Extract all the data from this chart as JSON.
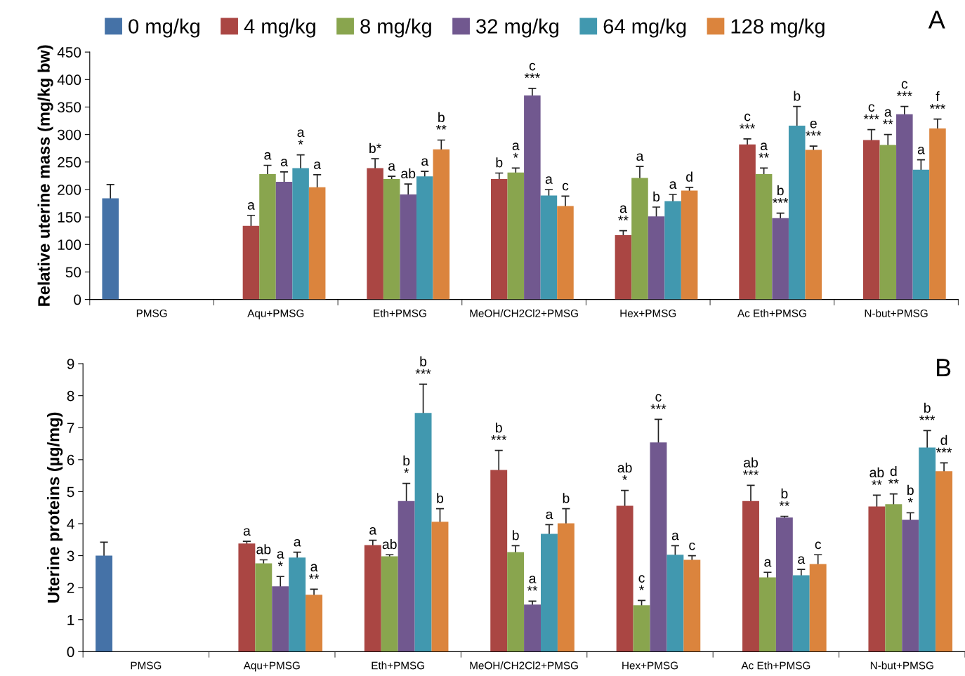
{
  "chart_data": [
    {
      "type": "bar",
      "ylabel": "Relative uterine mass (mg/kg bw)",
      "legend": "top",
      "ylim": [
        0,
        450
      ],
      "yticks": [
        0,
        50,
        100,
        150,
        200,
        250,
        300,
        350,
        400,
        450
      ],
      "grid": false,
      "annotations": [
        "A"
      ],
      "categories": [
        "PMSG",
        "Aqu+PMSG",
        "Eth+PMSG",
        "MeOH/CH2Cl2+PMSG",
        "Hex+PMSG",
        "Ac Eth+PMSG",
        "N-but+PMSG"
      ],
      "series": [
        {
          "name": "0 mg/kg",
          "color": "#4572a7",
          "values": [
            184,
            0,
            0,
            0,
            0,
            0,
            0
          ],
          "errors": [
            25,
            null,
            null,
            null,
            null,
            null,
            null
          ]
        },
        {
          "name": "4 mg/kg",
          "color": "#aa4643",
          "values": [
            0,
            134,
            239,
            219,
            117,
            282,
            290
          ],
          "errors": [
            null,
            19,
            17,
            11,
            8,
            10,
            19
          ],
          "value_labels": [
            null,
            "a",
            "b*",
            "b",
            "a\n**",
            "c\n***",
            "c\n***"
          ]
        },
        {
          "name": "8 mg/kg",
          "color": "#89a54e",
          "values": [
            0,
            228,
            219,
            231,
            221,
            228,
            281
          ],
          "errors": [
            null,
            16,
            5,
            8,
            21,
            11,
            19
          ],
          "value_labels": [
            null,
            "a",
            "a",
            "a\n*",
            "a",
            "a\n**",
            "a\n**"
          ]
        },
        {
          "name": "32 mg/kg",
          "color": "#71588f",
          "values": [
            0,
            214,
            191,
            371,
            151,
            148,
            337
          ],
          "errors": [
            null,
            18,
            19,
            13,
            17,
            9,
            14
          ],
          "value_labels": [
            null,
            "a",
            "ab",
            "c\n***",
            "b",
            "b\n***",
            "c\n***"
          ]
        },
        {
          "name": "64 mg/kg",
          "color": "#4198af",
          "values": [
            0,
            239,
            224,
            189,
            179,
            316,
            236
          ],
          "errors": [
            null,
            24,
            9,
            11,
            12,
            35,
            18
          ],
          "value_labels": [
            null,
            "a\n*",
            "a",
            "a",
            "a",
            "b",
            "a"
          ]
        },
        {
          "name": "128 mg/kg",
          "color": "#db843d",
          "values": [
            0,
            204,
            273,
            170,
            198,
            272,
            311
          ],
          "errors": [
            null,
            23,
            17,
            18,
            6,
            7,
            17
          ],
          "value_labels": [
            null,
            "a",
            "b\n**",
            "c",
            "d",
            "e\n***",
            "f\n***"
          ]
        }
      ]
    },
    {
      "type": "bar",
      "ylabel": "Uterine proteins (µg/mg)",
      "ylim": [
        0,
        9
      ],
      "yticks": [
        0,
        1,
        2,
        3,
        4,
        5,
        6,
        7,
        8,
        9
      ],
      "grid": false,
      "annotations": [
        "B"
      ],
      "categories": [
        "PMSG",
        "Aqu+PMSG",
        "Eth+PMSG",
        "MeOH/CH2Cl2+PMSG",
        "Hex+PMSG",
        "Ac Eth+PMSG",
        "N-but+PMSG"
      ],
      "series": [
        {
          "color": "#4572a7",
          "values": [
            3.0,
            0,
            0,
            0,
            0,
            0,
            0
          ],
          "errors": [
            0.42,
            null,
            null,
            null,
            null,
            null,
            null
          ]
        },
        {
          "color": "#aa4643",
          "values": [
            0,
            3.38,
            3.33,
            5.68,
            4.56,
            4.71,
            4.54
          ],
          "errors": [
            null,
            0.07,
            0.15,
            0.61,
            0.48,
            0.49,
            0.35
          ],
          "value_labels": [
            null,
            "a",
            "a",
            "b\n***",
            "ab\n*",
            "ab\n***",
            "ab\n**"
          ]
        },
        {
          "color": "#89a54e",
          "values": [
            0,
            2.76,
            2.98,
            3.11,
            1.45,
            2.32,
            4.61
          ],
          "errors": [
            null,
            0.11,
            0.05,
            0.2,
            0.15,
            0.16,
            0.32
          ],
          "value_labels": [
            null,
            "ab",
            "ab",
            "b",
            "c\n*",
            "a",
            "d\n**"
          ]
        },
        {
          "color": "#71588f",
          "values": [
            0,
            2.04,
            4.71,
            1.47,
            6.54,
            4.19,
            4.12
          ],
          "errors": [
            null,
            0.31,
            0.55,
            0.11,
            0.72,
            0.04,
            0.22
          ],
          "value_labels": [
            null,
            "a\n*",
            "b\n*",
            "a\n**",
            "c\n***",
            "b\n**",
            "b\n*"
          ]
        },
        {
          "color": "#4198af",
          "values": [
            0,
            2.94,
            7.46,
            3.68,
            3.03,
            2.39,
            6.38
          ],
          "errors": [
            null,
            0.17,
            0.9,
            0.29,
            0.28,
            0.18,
            0.53
          ],
          "value_labels": [
            null,
            "a",
            "b\n***",
            "a",
            "a",
            "a",
            "b\n***"
          ]
        },
        {
          "color": "#db843d",
          "values": [
            0,
            1.78,
            4.06,
            4.01,
            2.87,
            2.74,
            5.64
          ],
          "errors": [
            null,
            0.17,
            0.41,
            0.46,
            0.13,
            0.29,
            0.26
          ],
          "value_labels": [
            null,
            "a\n**",
            "b",
            "b",
            "c",
            "c",
            "d\n***"
          ]
        }
      ]
    }
  ]
}
